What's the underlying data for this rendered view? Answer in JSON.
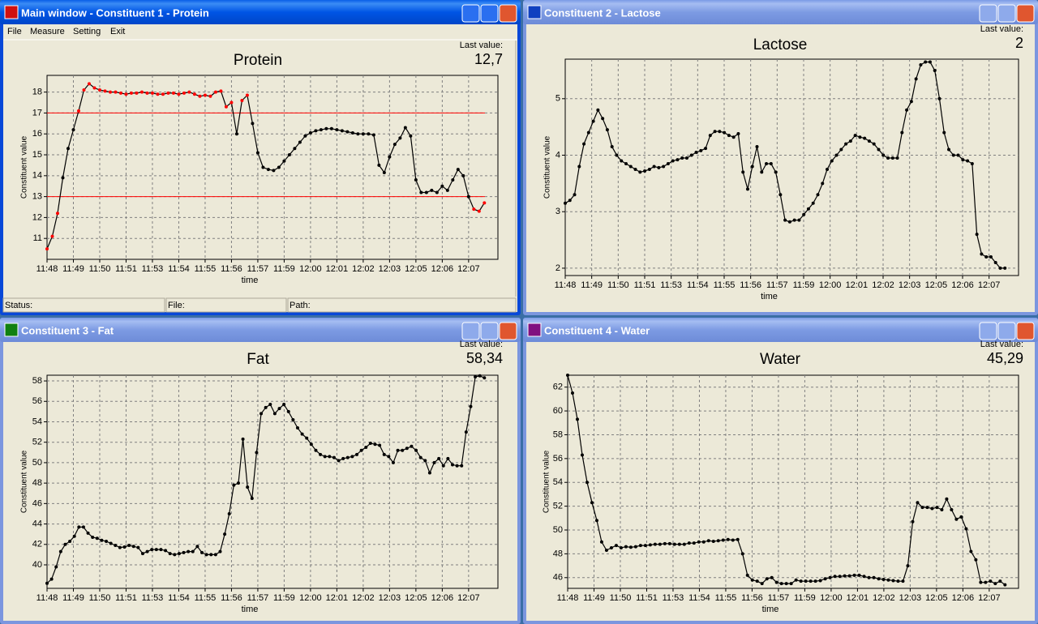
{
  "main_window": {
    "title": "Main window - Constituent 1 - Protein",
    "menu": [
      "File",
      "Measure",
      "Setting",
      "Exit"
    ],
    "status_bar": [
      "Status:",
      "File:",
      "Path:"
    ]
  },
  "window_titles": [
    "Constituent 2 - Lactose",
    "Constituent 3 - Fat",
    "Constituent 4 - Water"
  ],
  "chart_data": [
    {
      "type": "line",
      "title": "Protein",
      "title_color": "#ff0000",
      "last_value_label": "Last value:",
      "last_value": "12,7",
      "last_value_color": "#ff0000",
      "xlabel": "time",
      "ylabel": "Constituent value",
      "color": "#000000",
      "grid": true,
      "xticks": [
        "11:48",
        "11:49",
        "11:50",
        "11:51",
        "11:53",
        "11:54",
        "11:55",
        "11:56",
        "11:57",
        "11:59",
        "12:00",
        "12:01",
        "12:02",
        "12:03",
        "12:05",
        "12:06",
        "12:07"
      ],
      "ylim": [
        10,
        18.8
      ],
      "yticks": [
        11,
        12,
        13,
        14,
        15,
        16,
        17,
        18
      ],
      "limits": [
        13,
        17
      ],
      "limit_color": "#ff0000",
      "values": [
        10.5,
        11.1,
        12.2,
        13.9,
        15.3,
        16.2,
        17.1,
        18.1,
        18.4,
        18.2,
        18.1,
        18.05,
        18.0,
        18.0,
        17.95,
        17.9,
        17.95,
        17.95,
        18.0,
        17.95,
        17.95,
        17.9,
        17.9,
        17.95,
        17.95,
        17.9,
        17.95,
        18.0,
        17.9,
        17.8,
        17.85,
        17.8,
        18.0,
        18.05,
        17.3,
        17.5,
        16.0,
        17.6,
        17.85,
        16.5,
        15.1,
        14.4,
        14.3,
        14.25,
        14.4,
        14.7,
        15.0,
        15.3,
        15.6,
        15.9,
        16.05,
        16.15,
        16.2,
        16.25,
        16.25,
        16.2,
        16.15,
        16.1,
        16.05,
        16.0,
        16.0,
        16.0,
        15.95,
        14.5,
        14.15,
        14.9,
        15.5,
        15.8,
        16.3,
        15.9,
        13.8,
        13.2,
        13.2,
        13.3,
        13.2,
        13.5,
        13.3,
        13.8,
        14.3,
        14.0,
        13.0,
        12.4,
        12.3,
        12.7
      ]
    },
    {
      "type": "line",
      "title": "Lactose",
      "title_color": "#0000ff",
      "last_value_label": "Last value:",
      "last_value": "2",
      "last_value_color": "#000000",
      "xlabel": "time",
      "ylabel": "Constituent value",
      "color": "#000000",
      "grid": true,
      "xticks": [
        "11:48",
        "11:49",
        "11:50",
        "11:51",
        "11:53",
        "11:54",
        "11:55",
        "11:56",
        "11:57",
        "11:59",
        "12:00",
        "12:01",
        "12:02",
        "12:03",
        "12:05",
        "12:06",
        "12:07"
      ],
      "ylim": [
        1.87,
        5.7
      ],
      "yticks": [
        2,
        3,
        4,
        5
      ],
      "values": [
        3.15,
        3.2,
        3.3,
        3.8,
        4.2,
        4.4,
        4.6,
        4.8,
        4.65,
        4.45,
        4.15,
        4.0,
        3.9,
        3.85,
        3.8,
        3.75,
        3.7,
        3.72,
        3.75,
        3.8,
        3.78,
        3.8,
        3.85,
        3.9,
        3.92,
        3.95,
        3.95,
        4.0,
        4.05,
        4.08,
        4.12,
        4.35,
        4.42,
        4.42,
        4.4,
        4.35,
        4.32,
        4.38,
        3.7,
        3.4,
        3.8,
        4.15,
        3.7,
        3.85,
        3.85,
        3.7,
        3.3,
        2.85,
        2.82,
        2.85,
        2.85,
        2.95,
        3.05,
        3.15,
        3.3,
        3.5,
        3.75,
        3.9,
        4.0,
        4.1,
        4.2,
        4.25,
        4.35,
        4.32,
        4.3,
        4.25,
        4.2,
        4.1,
        4.0,
        3.95,
        3.95,
        3.95,
        4.4,
        4.8,
        4.95,
        5.35,
        5.6,
        5.65,
        5.65,
        5.5,
        5.0,
        4.4,
        4.1,
        4.0,
        4.0,
        3.92,
        3.9,
        3.85,
        2.6,
        2.25,
        2.2,
        2.2,
        2.1,
        2.0,
        2.0
      ]
    },
    {
      "type": "line",
      "title": "Fat",
      "title_color": "#008000",
      "last_value_label": "Last value:",
      "last_value": "58,34",
      "last_value_color": "#000000",
      "xlabel": "time",
      "ylabel": "Constituent value",
      "color": "#000000",
      "grid": true,
      "xticks": [
        "11:48",
        "11:49",
        "11:50",
        "11:51",
        "11:53",
        "11:54",
        "11:55",
        "11:56",
        "11:57",
        "11:59",
        "12:00",
        "12:01",
        "12:02",
        "12:03",
        "12:05",
        "12:06",
        "12:07"
      ],
      "ylim": [
        37.7,
        58.56
      ],
      "yticks": [
        40,
        42,
        44,
        46,
        48,
        50,
        52,
        54,
        56,
        58
      ],
      "values": [
        38.2,
        38.6,
        39.8,
        41.3,
        42.0,
        42.3,
        42.8,
        43.7,
        43.7,
        43.1,
        42.7,
        42.6,
        42.4,
        42.3,
        42.1,
        41.9,
        41.7,
        41.75,
        41.9,
        41.8,
        41.7,
        41.1,
        41.3,
        41.5,
        41.5,
        41.5,
        41.4,
        41.1,
        41.0,
        41.1,
        41.2,
        41.3,
        41.3,
        41.8,
        41.2,
        41.0,
        41.0,
        41.0,
        41.3,
        43.0,
        45.0,
        47.8,
        48.0,
        52.3,
        47.6,
        46.5,
        51.0,
        54.8,
        55.4,
        55.7,
        54.8,
        55.3,
        55.7,
        55.0,
        54.2,
        53.4,
        52.8,
        52.4,
        51.8,
        51.2,
        50.8,
        50.6,
        50.6,
        50.5,
        50.2,
        50.4,
        50.5,
        50.6,
        50.8,
        51.2,
        51.5,
        51.9,
        51.8,
        51.7,
        50.8,
        50.6,
        50.0,
        51.2,
        51.2,
        51.4,
        51.6,
        51.2,
        50.5,
        50.2,
        49.0,
        50.0,
        50.4,
        49.7,
        50.4,
        49.8,
        49.7,
        49.7,
        53.0,
        55.5,
        58.4,
        58.5,
        58.3
      ]
    },
    {
      "type": "line",
      "title": "Water",
      "title_color": "#8b0000",
      "last_value_label": "Last value:",
      "last_value": "45,29",
      "last_value_color": "#000000",
      "xlabel": "time",
      "ylabel": "Constituent value",
      "color": "#000000",
      "grid": true,
      "xticks": [
        "11:48",
        "11:49",
        "11:50",
        "11:51",
        "11:53",
        "11:54",
        "11:55",
        "11:56",
        "11:57",
        "11:59",
        "12:00",
        "12:01",
        "12:02",
        "12:03",
        "12:05",
        "12:06",
        "12:07"
      ],
      "ylim": [
        45.1,
        63.0
      ],
      "yticks": [
        46,
        48,
        50,
        52,
        54,
        56,
        58,
        60,
        62
      ],
      "values": [
        63.0,
        61.5,
        59.3,
        56.3,
        54.0,
        52.3,
        50.8,
        49.0,
        48.3,
        48.5,
        48.7,
        48.5,
        48.6,
        48.55,
        48.6,
        48.7,
        48.7,
        48.75,
        48.8,
        48.8,
        48.85,
        48.85,
        48.8,
        48.8,
        48.8,
        48.9,
        48.9,
        49.0,
        49.0,
        49.1,
        49.05,
        49.1,
        49.15,
        49.2,
        49.15,
        49.2,
        48.0,
        46.2,
        45.8,
        45.7,
        45.5,
        45.9,
        46.0,
        45.6,
        45.5,
        45.5,
        45.5,
        45.8,
        45.7,
        45.7,
        45.7,
        45.7,
        45.75,
        45.9,
        46.0,
        46.1,
        46.1,
        46.15,
        46.15,
        46.2,
        46.2,
        46.1,
        46.0,
        46.0,
        45.9,
        45.85,
        45.8,
        45.75,
        45.7,
        45.7,
        47.0,
        50.7,
        52.3,
        51.9,
        51.9,
        51.8,
        51.9,
        51.7,
        52.6,
        51.7,
        50.9,
        51.1,
        50.1,
        48.2,
        47.5,
        45.6,
        45.6,
        45.7,
        45.5,
        45.7,
        45.4
      ]
    }
  ]
}
